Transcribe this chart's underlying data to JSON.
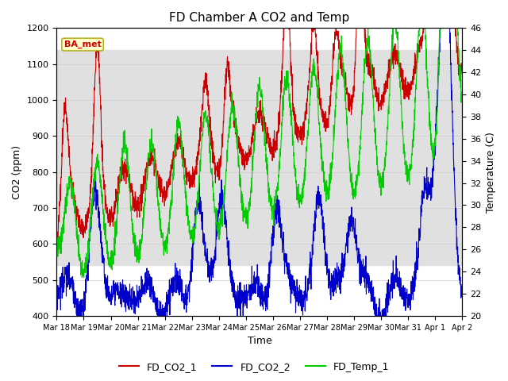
{
  "title": "FD Chamber A CO2 and Temp",
  "xlabel": "Time",
  "ylabel_left": "CO2 (ppm)",
  "ylabel_right": "Temperature (C)",
  "ylim_left": [
    400,
    1200
  ],
  "ylim_right": [
    20,
    46
  ],
  "yticks_left": [
    400,
    500,
    600,
    700,
    800,
    900,
    1000,
    1100,
    1200
  ],
  "yticks_right": [
    20,
    22,
    24,
    26,
    28,
    30,
    32,
    34,
    36,
    38,
    40,
    42,
    44,
    46
  ],
  "bg_band_low": 540,
  "bg_band_high": 1140,
  "legend_labels": [
    "FD_CO2_1",
    "FD_CO2_2",
    "FD_Temp_1"
  ],
  "legend_colors": [
    "#cc0000",
    "#0000cc",
    "#00cc00"
  ],
  "annotation_text": "BA_met",
  "annotation_color": "#cc0000",
  "annotation_bg": "#ffffcc",
  "xtick_labels": [
    "Mar 18",
    "Mar 19",
    "Mar 20",
    "Mar 21",
    "Mar 22",
    "Mar 23",
    "Mar 24",
    "Mar 25",
    "Mar 26",
    "Mar 27",
    "Mar 28",
    "Mar 29",
    "Mar 30",
    "Mar 31",
    "Apr 1",
    "Apr 2"
  ],
  "line_width": 0.8,
  "background_color": "#ffffff",
  "grid_color": "#cccccc",
  "n_days": 15,
  "n_points": 2160
}
